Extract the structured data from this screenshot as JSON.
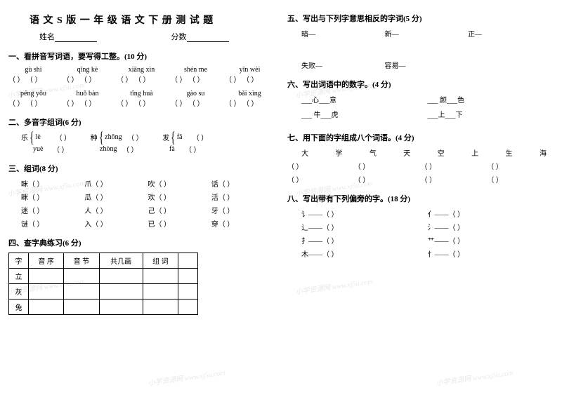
{
  "title": "语 文 S 版 一 年 级 语 文 下 册 测 试 题",
  "name_label": "姓名",
  "score_label": "分数",
  "watermark_text": "小学资源网 www.xj5u.com",
  "q1": {
    "heading": "一、看拼音写词语，要写得工整。(10 分)",
    "pinyin_row1": [
      "gù  shi",
      "qǐng  kè",
      "xiāng  xìn",
      "shén  me",
      "yīn  wèi"
    ],
    "pinyin_row2": [
      "péng  yǒu",
      "huǒ  bàn",
      "tīng  huà",
      "gào  su",
      "bǎi  xìng"
    ]
  },
  "q2": {
    "heading": "二、多音字组词(6 分)",
    "items": [
      {
        "char": "乐",
        "r1": "lè",
        "r2": "yuè"
      },
      {
        "char": "种",
        "r1": "zhǒng",
        "r2": "zhòng"
      },
      {
        "char": "发",
        "r1": "fā",
        "r2": "fà"
      }
    ]
  },
  "q3": {
    "heading": "三、组词(8 分)",
    "rows": [
      [
        "眯（",
        "爪（",
        "吹（",
        "话（"
      ],
      [
        "眯（",
        "瓜（",
        "欢（",
        "活（"
      ],
      [
        "迷（",
        "人（",
        "己（",
        "牙（"
      ],
      [
        "谜（",
        "入（",
        "已（",
        "穿（"
      ]
    ]
  },
  "q4": {
    "heading": "四、查字典练习(6 分)",
    "headers": [
      "字",
      "音  序",
      "音  节",
      "共几画",
      "组   词",
      ""
    ],
    "rows": [
      "立",
      "灰",
      "兔"
    ]
  },
  "q5": {
    "heading": "五、写出与下列字意思相反的字词(5 分)",
    "items": [
      "暗—",
      "新—",
      "正—",
      "失败—",
      "容易—"
    ]
  },
  "q6": {
    "heading": "六、写出词语中的数字。(4 分)",
    "items": [
      "___心___意",
      "___ 颜___色",
      "___ 牛___虎",
      "___上___下"
    ]
  },
  "q7": {
    "heading": "七、用下面的字组成八个词语。(4 分)",
    "chars": [
      "大",
      "学",
      "气",
      "天",
      "空",
      "上",
      "生",
      "海"
    ]
  },
  "q8": {
    "heading": "八、写出带有下列偏旁的字。(18 分)",
    "radicals": [
      [
        "讠——（",
        "亻——（"
      ],
      [
        "辶——（",
        "氵——（"
      ],
      [
        "扌——（",
        "艹——（"
      ],
      [
        "木——（",
        "忄——（"
      ]
    ]
  },
  "paren_pair": "（        ） （        ）",
  "paren_single": "（        ）",
  "paren_close": "）"
}
